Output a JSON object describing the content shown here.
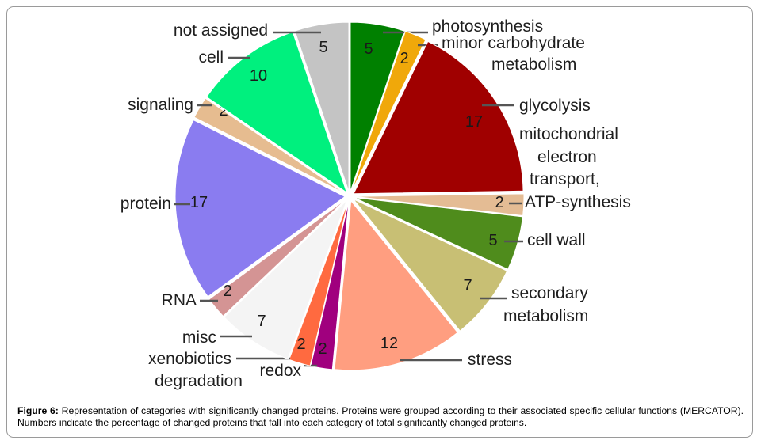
{
  "chart_data": {
    "type": "pie",
    "slices": [
      {
        "label": "photosynthesis",
        "value": 5,
        "color": "#008000"
      },
      {
        "label": "minor carbohydrate metabolism",
        "value": 2,
        "color": "#f0a80a"
      },
      {
        "label": "glycolysis",
        "value": 17,
        "color": "#a00000"
      },
      {
        "label": "mitochondrial electron transport, ATP-synthesis",
        "value": 2,
        "color": "#e4bc94"
      },
      {
        "label": "cell wall",
        "value": 5,
        "color": "#4f8c1c"
      },
      {
        "label": "secondary metabolism",
        "value": 7,
        "color": "#c8bf74"
      },
      {
        "label": "stress",
        "value": 12,
        "color": "#ff9e80"
      },
      {
        "label": "redox",
        "value": 2,
        "color": "#a0007e"
      },
      {
        "label": "xenobiotics degradation",
        "value": 2,
        "color": "#ff6a40"
      },
      {
        "label": "misc",
        "value": 7,
        "color": "#f4f4f4"
      },
      {
        "label": "RNA",
        "value": 2,
        "color": "#d49494"
      },
      {
        "label": "protein",
        "value": 17,
        "color": "#8a7cf0"
      },
      {
        "label": "signaling",
        "value": 2,
        "color": "#e6bc90"
      },
      {
        "label": "cell",
        "value": 10,
        "color": "#00f07e"
      },
      {
        "label": "not assigned",
        "value": 5,
        "color": "#c4c4c4"
      }
    ]
  },
  "caption": {
    "label": "Figure 6:",
    "title": "Representation of categories with significantly changed proteins.",
    "text": "Proteins were grouped according to their associated specific cellular functions (MERCATOR). Numbers indicate the percentage of changed proteins that fall into each category of total significantly changed proteins."
  }
}
